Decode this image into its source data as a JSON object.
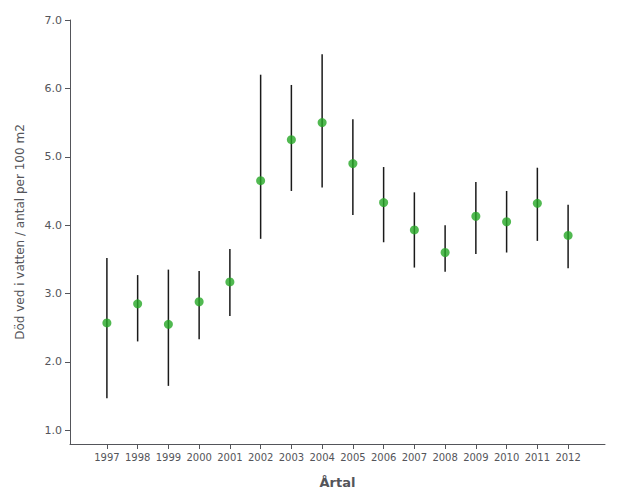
{
  "chart_data": {
    "type": "scatter",
    "xlabel": "Årtal",
    "ylabel": "Död ved i vatten / antal per 100 m2",
    "x": [
      1997,
      1998,
      1999,
      2000,
      2001,
      2002,
      2003,
      2004,
      2005,
      2006,
      2007,
      2008,
      2009,
      2010,
      2011,
      2012
    ],
    "values": [
      2.57,
      2.85,
      2.55,
      2.88,
      3.17,
      4.65,
      5.25,
      5.5,
      4.9,
      4.33,
      3.93,
      3.6,
      4.13,
      4.05,
      4.32,
      3.85
    ],
    "err_low": [
      1.1,
      0.55,
      0.9,
      0.55,
      0.5,
      0.85,
      0.75,
      0.95,
      0.75,
      0.58,
      0.55,
      0.28,
      0.55,
      0.45,
      0.55,
      0.48
    ],
    "err_high": [
      0.95,
      0.42,
      0.8,
      0.45,
      0.48,
      1.55,
      0.8,
      1.0,
      0.65,
      0.52,
      0.55,
      0.4,
      0.5,
      0.45,
      0.52,
      0.45
    ],
    "color": "#26a826",
    "marker": "circle",
    "xlim": [
      1995.8,
      2013.2
    ],
    "xticks": [
      1997,
      1998,
      1999,
      2000,
      2001,
      2002,
      2003,
      2004,
      2005,
      2006,
      2007,
      2008,
      2009,
      2010,
      2011,
      2012
    ],
    "ylim": [
      0.8,
      7.0
    ],
    "yticks": [
      {
        "value": 1.0,
        "label": "1.0"
      },
      {
        "value": 2.0,
        "label": "2.0"
      },
      {
        "value": 3.0,
        "label": "3.0"
      },
      {
        "value": 4.0,
        "label": "4.0"
      },
      {
        "value": 5.0,
        "label": "5.0"
      },
      {
        "value": 6.0,
        "label": "6.0"
      },
      {
        "value": 7.0,
        "label": "7.0"
      }
    ],
    "grid": false
  }
}
